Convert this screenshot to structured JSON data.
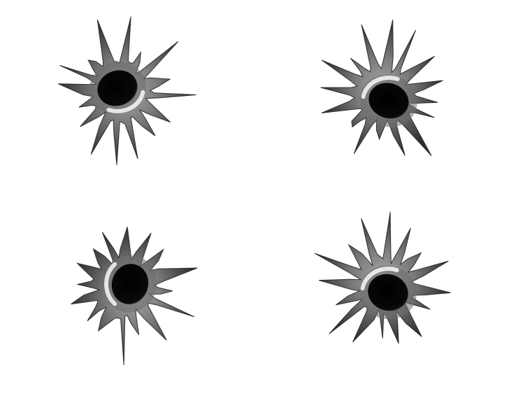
{
  "scene": {
    "background_color": "#ffffff",
    "subject": "bullet holes",
    "hole_count": 4,
    "holes": [
      {
        "name": "bullet-hole-top-left",
        "icon": "bullet-hole-icon",
        "highlight_side": "bottom-right"
      },
      {
        "name": "bullet-hole-top-right",
        "icon": "bullet-hole-icon",
        "highlight_side": "top-left"
      },
      {
        "name": "bullet-hole-bottom-left",
        "icon": "bullet-hole-icon",
        "highlight_side": "left"
      },
      {
        "name": "bullet-hole-bottom-right",
        "icon": "bullet-hole-icon",
        "highlight_side": "top-left"
      }
    ]
  },
  "colors": {
    "burst_outer": "#2f2f2f",
    "burst_mid": "#6b6b6b",
    "burst_inner": "#a4a4a4",
    "hole": "#050505",
    "highlight": "#f2f2f2"
  }
}
